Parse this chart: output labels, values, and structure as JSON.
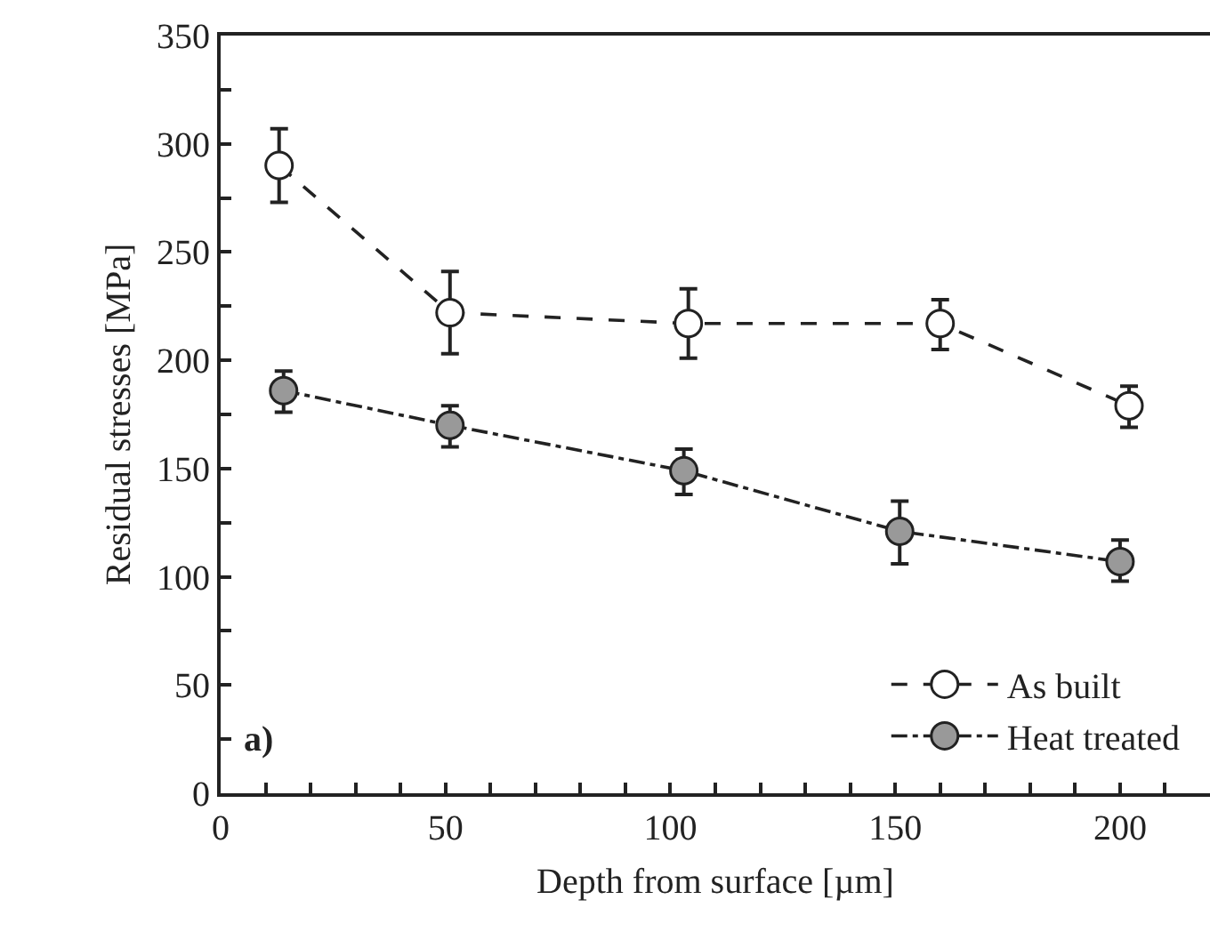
{
  "chart_data": {
    "type": "line",
    "xlabel": "Depth from surface [µm]",
    "ylabel": "Residual stresses [MPa]",
    "xlim": [
      0,
      220
    ],
    "ylim": [
      0,
      350
    ],
    "xticks": [
      0,
      {
        "value": 10,
        "label": null
      },
      {
        "value": 20,
        "label": null
      },
      {
        "value": 30,
        "label": null
      },
      {
        "value": 40,
        "label": null
      },
      50,
      {
        "value": 60,
        "label": null
      },
      {
        "value": 70,
        "label": null
      },
      {
        "value": 80,
        "label": null
      },
      {
        "value": 90,
        "label": null
      },
      100,
      {
        "value": 110,
        "label": null
      },
      {
        "value": 120,
        "label": null
      },
      {
        "value": 130,
        "label": null
      },
      {
        "value": 140,
        "label": null
      },
      150,
      {
        "value": 160,
        "label": null
      },
      {
        "value": 170,
        "label": null
      },
      {
        "value": 180,
        "label": null
      },
      {
        "value": 190,
        "label": null
      },
      200,
      {
        "value": 210,
        "label": null
      },
      {
        "value": 220,
        "label": null
      }
    ],
    "yticks": [
      0,
      {
        "value": 25,
        "label": null
      },
      50,
      {
        "value": 75,
        "label": null
      },
      100,
      {
        "value": 125,
        "label": null
      },
      150,
      {
        "value": 175,
        "label": null
      },
      200,
      {
        "value": 225,
        "label": null
      },
      250,
      {
        "value": 275,
        "label": null
      },
      300,
      {
        "value": 325,
        "label": null
      },
      350
    ],
    "grid": false,
    "legend": "bottom right",
    "marker": "circle",
    "annotations": [
      "a)"
    ],
    "series": [
      {
        "name": "As built",
        "color": "#ffffff",
        "line_style": "dashed",
        "x": [
          13,
          51,
          104,
          160,
          202
        ],
        "values": [
          290,
          222,
          217,
          217,
          179
        ],
        "errors": [
          [
            273,
            307
          ],
          [
            203,
            241
          ],
          [
            201,
            233
          ],
          [
            205,
            228
          ],
          [
            169,
            188
          ]
        ]
      },
      {
        "name": "Heat treated",
        "color": "#999999",
        "line_style": "dashdot",
        "x": [
          14,
          51,
          103,
          151,
          200
        ],
        "values": [
          186,
          170,
          149,
          121,
          107
        ],
        "errors": [
          [
            176,
            195
          ],
          [
            160,
            179
          ],
          [
            138,
            159
          ],
          [
            106,
            135
          ],
          [
            98,
            117
          ]
        ]
      }
    ]
  }
}
